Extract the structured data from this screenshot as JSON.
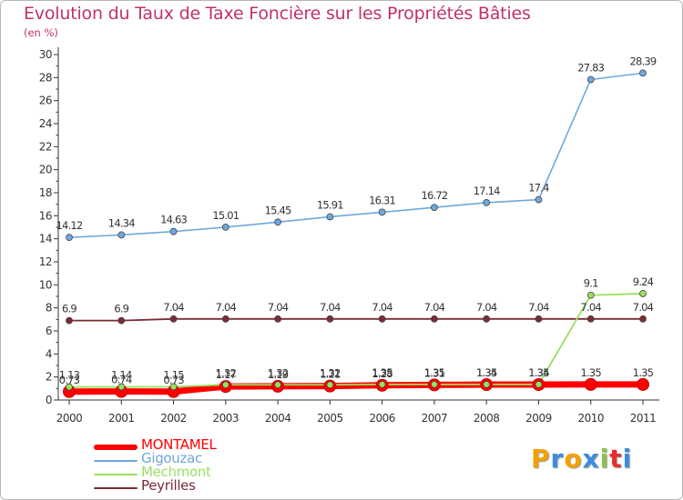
{
  "chart_data": {
    "type": "line",
    "title": "Evolution du Taux de Taxe Foncière sur les Propriétés Bâties",
    "ylabel": "(en %)",
    "xlabel": "",
    "ylim": [
      0,
      30
    ],
    "yticks": [
      "0",
      "2",
      "4",
      "6",
      "8",
      "10",
      "12",
      "14",
      "16",
      "18",
      "20",
      "22",
      "24",
      "26",
      "28",
      "30"
    ],
    "categories": [
      "2000",
      "2001",
      "2002",
      "2003",
      "2004",
      "2005",
      "2006",
      "2007",
      "2008",
      "2009",
      "2010",
      "2011"
    ],
    "series": [
      {
        "name": "MONTAMEL",
        "color": "#ff0000",
        "values": [
          0.73,
          0.74,
          0.73,
          1.17,
          1.19,
          1.21,
          1.28,
          1.31,
          1.34,
          1.34,
          1.35,
          1.35
        ],
        "labels": [
          "0.73",
          "0.74",
          "0.73",
          "1.17",
          "1.19",
          "1.21",
          "1.28",
          "1.31",
          "1.34",
          "1.34",
          "1.35",
          "1.35"
        ]
      },
      {
        "name": "Gigouzac",
        "color": "#6fa8dc",
        "values": [
          14.12,
          14.34,
          14.63,
          15.01,
          15.45,
          15.91,
          16.31,
          16.72,
          17.14,
          17.4,
          27.83,
          28.39
        ],
        "labels": [
          "14.12",
          "14.34",
          "14.63",
          "15.01",
          "15.45",
          "15.91",
          "16.31",
          "16.72",
          "17.14",
          "17.4",
          "27.83",
          "28.39"
        ]
      },
      {
        "name": "Mechmont",
        "color": "#99e060",
        "values": [
          1.13,
          1.14,
          1.15,
          1.32,
          1.32,
          1.32,
          1.35,
          1.35,
          1.35,
          1.35,
          9.1,
          9.24
        ],
        "labels": [
          "1.13",
          "1.14",
          "1.15",
          "1.32",
          "1.32",
          "1.32",
          "1.35",
          "1.35",
          "1.35",
          "1.35",
          "9.1",
          "9.24"
        ]
      },
      {
        "name": "Peyrilles",
        "color": "#7b2b35",
        "values": [
          6.9,
          6.9,
          7.04,
          7.04,
          7.04,
          7.04,
          7.04,
          7.04,
          7.04,
          7.04,
          7.04,
          7.04
        ],
        "labels": [
          "6.9",
          "6.9",
          "7.04",
          "7.04",
          "7.04",
          "7.04",
          "7.04",
          "7.04",
          "7.04",
          "7.04",
          "7.04",
          "7.04"
        ]
      }
    ],
    "grid": false,
    "legend_position": "bottom-left"
  },
  "branding": {
    "logo_letters": [
      "P",
      "r",
      "o",
      "x",
      "i",
      "t",
      "i"
    ],
    "logo_colors": [
      "#f4a100",
      "#3b8de0",
      "#f4a100",
      "#3b8de0",
      "#8bc34a",
      "#e63030",
      "#3b8de0"
    ]
  }
}
